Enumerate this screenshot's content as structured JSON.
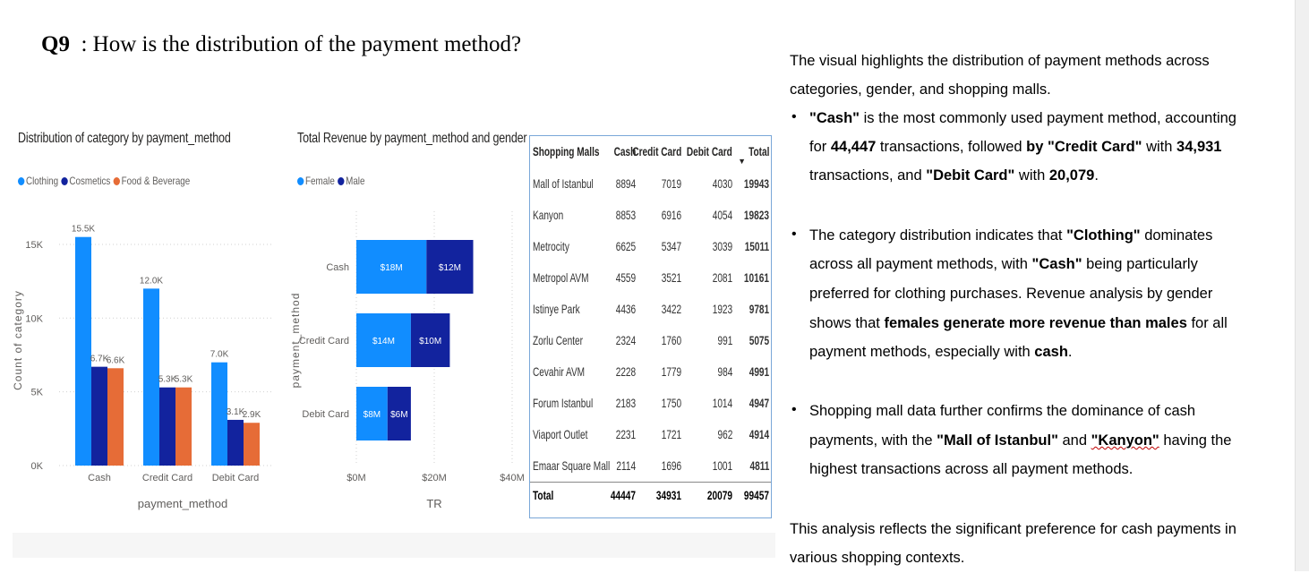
{
  "question": {
    "label": "Q9",
    "text": ": How is the distribution of the payment method?"
  },
  "chart_data": [
    {
      "type": "bar",
      "title": "Distribution of category by payment_method",
      "xlabel": "payment_method",
      "ylabel": "Count of category",
      "categories": [
        "Cash",
        "Credit Card",
        "Debit Card"
      ],
      "series": [
        {
          "name": "Clothing",
          "color": "#118dff",
          "values": [
            15500,
            12000,
            7000
          ],
          "labels": [
            "15.5K",
            "12.0K",
            "7.0K"
          ]
        },
        {
          "name": "Cosmetics",
          "color": "#12239e",
          "values": [
            6700,
            5300,
            3100
          ],
          "labels": [
            "6.7K",
            "5.3K",
            "3.1K"
          ]
        },
        {
          "name": "Food & Beverage",
          "color": "#e66c37",
          "values": [
            6600,
            5300,
            2900
          ],
          "labels": [
            "6.6K",
            "5.3K",
            "2.9K"
          ]
        }
      ],
      "yticks": [
        0,
        5000,
        10000,
        15000
      ],
      "ytick_labels": [
        "0K",
        "5K",
        "10K",
        "15K"
      ],
      "ylim": [
        0,
        17000
      ],
      "grid": true,
      "legend": "top-left"
    },
    {
      "type": "bar",
      "orientation": "horizontal",
      "stacked": true,
      "title": "Total Revenue by payment_method and gender",
      "xlabel": "TR",
      "ylabel": "payment_method",
      "categories": [
        "Cash",
        "Credit Card",
        "Debit Card"
      ],
      "series": [
        {
          "name": "Female",
          "color": "#118dff",
          "values": [
            18,
            14,
            8
          ],
          "labels": [
            "$18M",
            "$14M",
            "$8M"
          ]
        },
        {
          "name": "Male",
          "color": "#12239e",
          "values": [
            12,
            10,
            6
          ],
          "labels": [
            "$12M",
            "$10M",
            "$6M"
          ]
        }
      ],
      "units": "$M",
      "xticks": [
        0,
        20,
        40
      ],
      "xtick_labels": [
        "$0M",
        "$20M",
        "$40M"
      ],
      "xlim": [
        0,
        40
      ],
      "grid": true,
      "legend": "top-left"
    },
    {
      "type": "table",
      "columns": [
        "Shopping Malls",
        "Cash",
        "Credit Card",
        "Debit Card",
        "Total"
      ],
      "rows": [
        [
          "Mall of Istanbul",
          "8894",
          "7019",
          "4030",
          "19943"
        ],
        [
          "Kanyon",
          "8853",
          "6916",
          "4054",
          "19823"
        ],
        [
          "Metrocity",
          "6625",
          "5347",
          "3039",
          "15011"
        ],
        [
          "Metropol AVM",
          "4559",
          "3521",
          "2081",
          "10161"
        ],
        [
          "Istinye Park",
          "4436",
          "3422",
          "1923",
          "9781"
        ],
        [
          "Zorlu Center",
          "2324",
          "1760",
          "991",
          "5075"
        ],
        [
          "Cevahir AVM",
          "2228",
          "1779",
          "984",
          "4991"
        ],
        [
          "Forum Istanbul",
          "2183",
          "1750",
          "1014",
          "4947"
        ],
        [
          "Viaport Outlet",
          "2231",
          "1721",
          "962",
          "4914"
        ],
        [
          "Emaar Square Mall",
          "2114",
          "1696",
          "1001",
          "4811"
        ]
      ],
      "total": [
        "Total",
        "44447",
        "34931",
        "20079",
        "99457"
      ],
      "sort_column": "Total",
      "sort_indicator": "▼"
    }
  ],
  "narrative": {
    "intro1": "The visual highlights the distribution of payment methods across",
    "intro2": "categories, gender, and shopping malls.",
    "b1": {
      "q1": "\"Cash\"",
      "t1": " is the most commonly used payment method, accounting",
      "t2": "for ",
      "n1": "44,447",
      "t3": " transactions, followed ",
      "q2": "by \"Credit Card\"",
      "t4": " with ",
      "n2": "34,931",
      "t5": "transactions, and ",
      "q3": "\"Debit Card\"",
      "t6": " with ",
      "n3": "20,079",
      "t7": "."
    },
    "b2": {
      "t1": "The category distribution indicates that ",
      "q1": "\"Clothing\"",
      "t2": " dominates",
      "t3": "across all payment methods, with ",
      "q2": "\"Cash\"",
      "t4": " being particularly",
      "t5": "preferred for clothing purchases. Revenue analysis by gender",
      "t6": "shows that ",
      "q3": "females generate more revenue than males",
      "t7": " for all",
      "t8": "payment methods, especially with ",
      "q4": "cash",
      "t9": "."
    },
    "b3": {
      "t1": "Shopping mall data further confirms the dominance of cash",
      "t2": "payments, with the ",
      "q1": "\"Mall of Istanbul\"",
      "t3": " and ",
      "q2": "\"Kanyon\"",
      "t4": " having the",
      "t5": "highest transactions across all payment methods."
    },
    "outro1": "This analysis reflects the significant preference for cash payments in",
    "outro2": "various shopping contexts.",
    "bullet": "•"
  }
}
